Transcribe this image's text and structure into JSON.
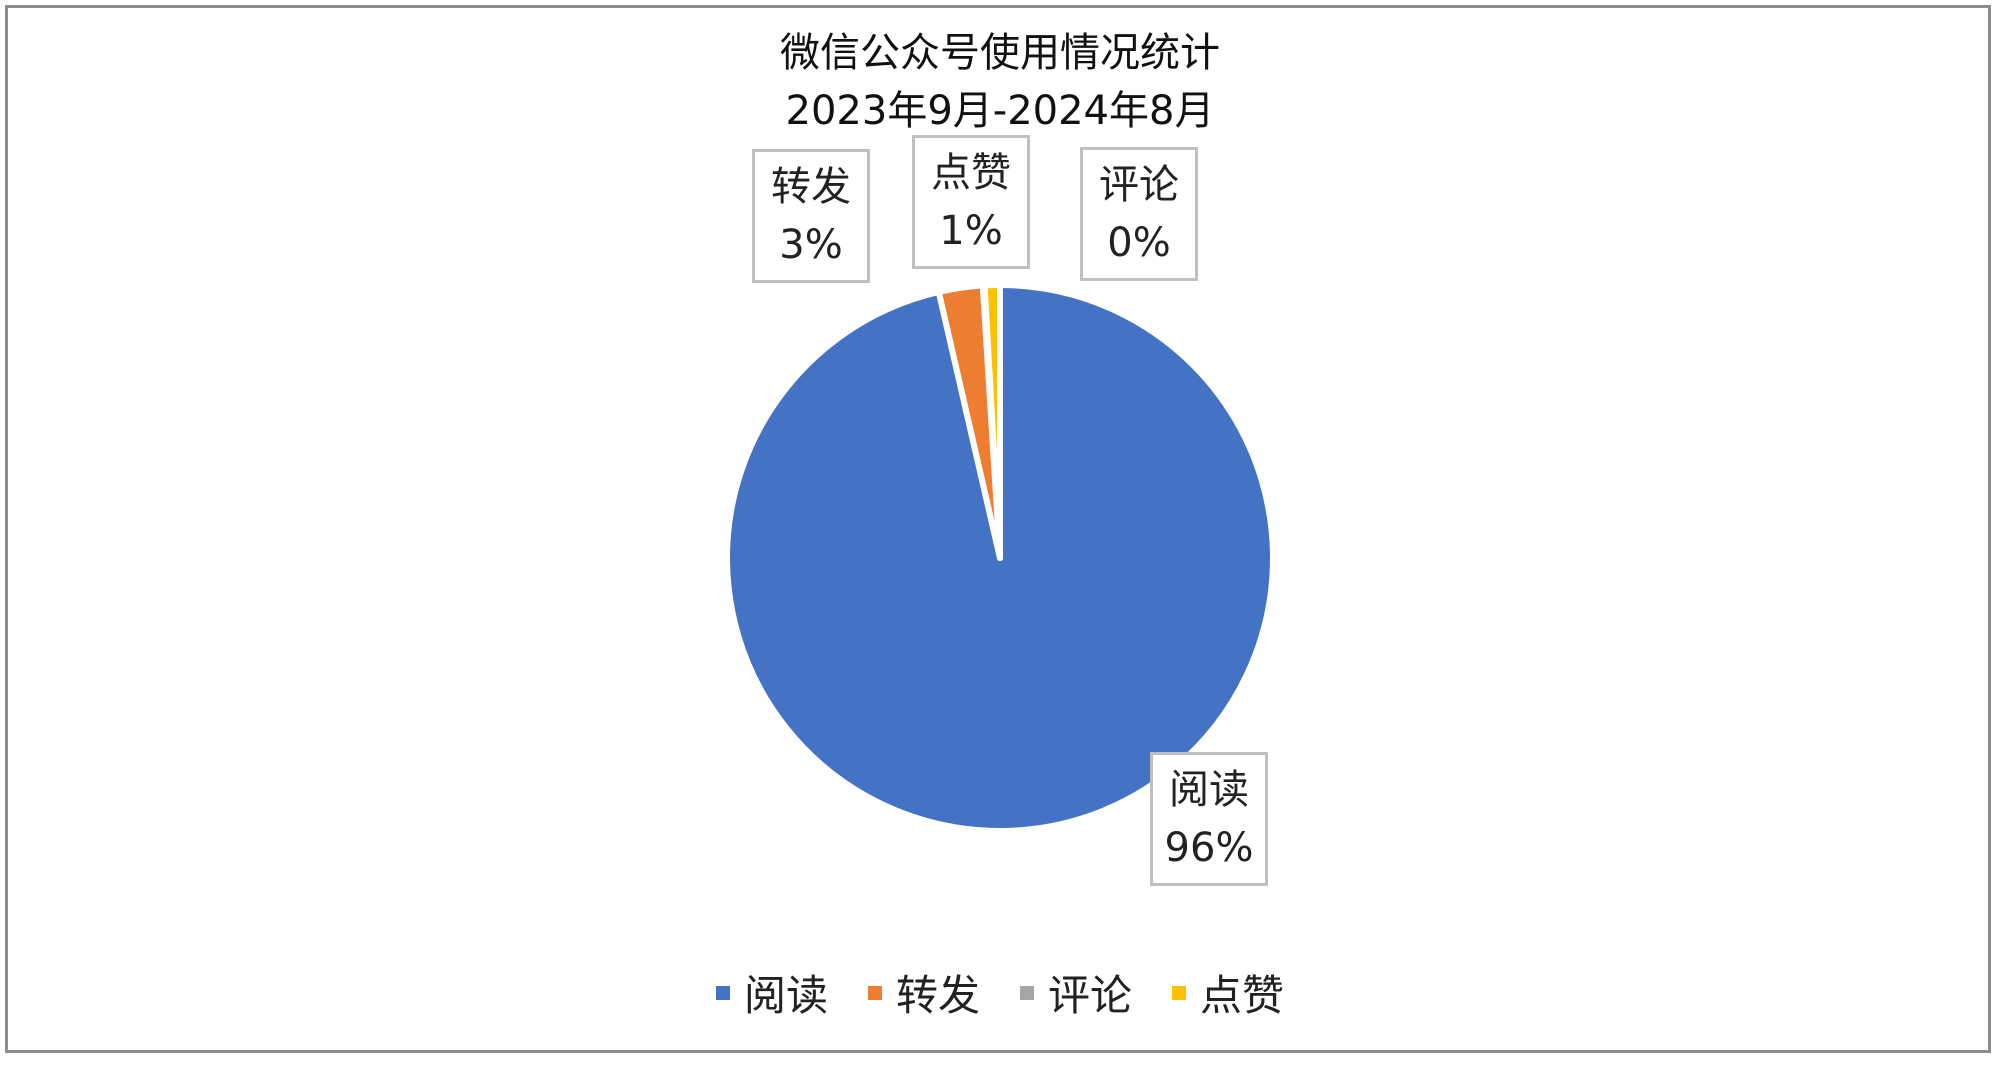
{
  "chart_data": {
    "type": "pie",
    "title": "微信公众号使用情况统计",
    "subtitle": "2023年9月-2024年8月",
    "categories": [
      "阅读",
      "转发",
      "评论",
      "点赞"
    ],
    "values": [
      96.4,
      2.6,
      0.1,
      0.9
    ],
    "data_labels": [
      "96%",
      "3%",
      "0%",
      "1%"
    ],
    "colors": [
      "#4472C4",
      "#ED7D31",
      "#A5A5A5",
      "#FFC000"
    ],
    "legend_position": "bottom",
    "start_angle": "top, clockwise"
  }
}
